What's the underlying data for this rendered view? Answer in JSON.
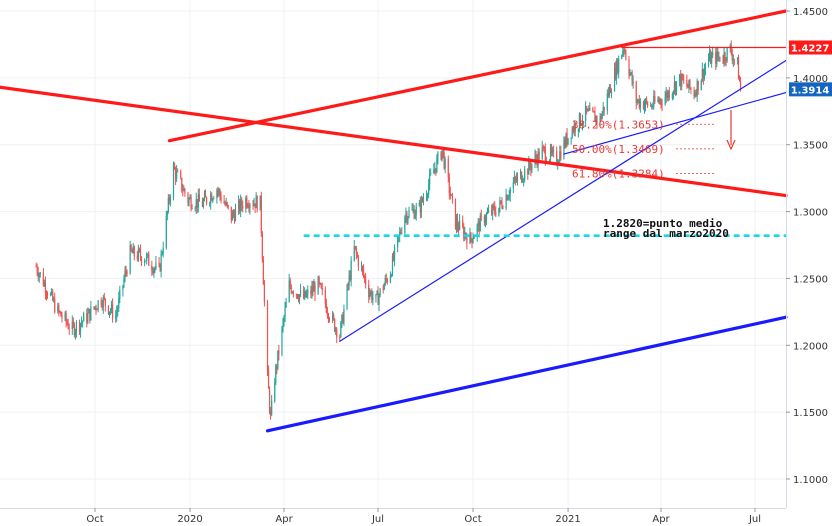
{
  "chart_data": {
    "type": "candlestick",
    "title": "",
    "xlabel": "",
    "ylabel": "",
    "x_ticks": [
      "Oct",
      "2020",
      "Apr",
      "Jul",
      "Oct",
      "2021",
      "Apr",
      "Jul"
    ],
    "y_ticks": [
      "1.4500",
      "1.4000",
      "1.3500",
      "1.3000",
      "1.2500",
      "1.2000",
      "1.1500",
      "1.1000"
    ],
    "ylim": [
      1.09,
      1.455
    ],
    "grid": true,
    "colors": {
      "up": "#26a69a",
      "down": "#ef5350",
      "trend_red": "#ff1a1a",
      "trend_blue": "#1a1aff",
      "fib": "#e53935",
      "range_mid": "#18d8e8"
    },
    "price_badges": [
      {
        "label": "1.4227",
        "value": 1.4227,
        "color": "#ff1a1a"
      },
      {
        "label": "1.3914",
        "value": 1.3914,
        "color": "#1565c0"
      }
    ],
    "fib_levels": [
      {
        "label": "38.20%(1.3653)",
        "value": 1.3653
      },
      {
        "label": "50.00%(1.3469)",
        "value": 1.3469
      },
      {
        "label": "61.80%(1.3284)",
        "value": 1.3284
      }
    ],
    "annotation": [
      "1.2820=punto medio",
      "range dal marzo2020"
    ],
    "range_mid_level": 1.282,
    "price_series": [
      [
        "2019-08-05",
        1.259
      ],
      [
        "2019-08-26",
        1.225
      ],
      [
        "2019-09-09",
        1.212
      ],
      [
        "2019-09-23",
        1.221
      ],
      [
        "2019-10-07",
        1.235
      ],
      [
        "2019-10-21",
        1.222
      ],
      [
        "2019-11-04",
        1.269
      ],
      [
        "2019-11-18",
        1.266
      ],
      [
        "2019-12-02",
        1.255
      ],
      [
        "2019-12-16",
        1.332
      ],
      [
        "2019-12-30",
        1.309
      ],
      [
        "2020-01-13",
        1.306
      ],
      [
        "2020-01-27",
        1.317
      ],
      [
        "2020-02-10",
        1.296
      ],
      [
        "2020-02-24",
        1.309
      ],
      [
        "2020-03-09",
        1.306
      ],
      [
        "2020-03-16",
        1.176
      ],
      [
        "2020-03-19",
        1.145
      ],
      [
        "2020-03-23",
        1.176
      ],
      [
        "2020-04-06",
        1.245
      ],
      [
        "2020-04-20",
        1.235
      ],
      [
        "2020-05-04",
        1.245
      ],
      [
        "2020-05-18",
        1.218
      ],
      [
        "2020-05-25",
        1.208
      ],
      [
        "2020-06-08",
        1.272
      ],
      [
        "2020-06-22",
        1.241
      ],
      [
        "2020-06-29",
        1.233
      ],
      [
        "2020-07-13",
        1.255
      ],
      [
        "2020-07-27",
        1.298
      ],
      [
        "2020-08-10",
        1.302
      ],
      [
        "2020-08-24",
        1.331
      ],
      [
        "2020-09-01",
        1.346
      ],
      [
        "2020-09-14",
        1.292
      ],
      [
        "2020-09-28",
        1.279
      ],
      [
        "2020-10-12",
        1.296
      ],
      [
        "2020-10-26",
        1.303
      ],
      [
        "2020-11-09",
        1.321
      ],
      [
        "2020-11-23",
        1.332
      ],
      [
        "2020-12-07",
        1.345
      ],
      [
        "2020-12-21",
        1.339
      ],
      [
        "2021-01-04",
        1.361
      ],
      [
        "2021-01-18",
        1.373
      ],
      [
        "2021-02-01",
        1.369
      ],
      [
        "2021-02-15",
        1.403
      ],
      [
        "2021-02-24",
        1.424
      ],
      [
        "2021-03-08",
        1.383
      ],
      [
        "2021-03-22",
        1.379
      ],
      [
        "2021-04-05",
        1.386
      ],
      [
        "2021-04-19",
        1.399
      ],
      [
        "2021-05-03",
        1.389
      ],
      [
        "2021-05-17",
        1.414
      ],
      [
        "2021-05-31",
        1.416
      ],
      [
        "2021-06-07",
        1.421
      ],
      [
        "2021-06-14",
        1.409
      ],
      [
        "2021-06-17",
        1.391
      ]
    ],
    "trendlines": [
      {
        "color": "trend_red",
        "from": [
          "2019-12-12",
          1.353
        ],
        "to": [
          "2021-07-31",
          1.45
        ]
      },
      {
        "color": "trend_red",
        "from": [
          "2019-07-01",
          1.393
        ],
        "to": [
          "2021-07-31",
          1.312
        ]
      },
      {
        "color": "trend_red",
        "from": [
          "2021-02-22",
          1.4227
        ],
        "to": [
          "2021-07-31",
          1.4227
        ]
      },
      {
        "color": "trend_blue",
        "from": [
          "2020-03-16",
          1.136
        ],
        "to": [
          "2021-07-31",
          1.221
        ]
      },
      {
        "color": "trend_blue",
        "from": [
          "2020-05-25",
          1.203
        ],
        "to": [
          "2021-07-31",
          1.413
        ]
      },
      {
        "color": "trend_blue",
        "from": [
          "2020-12-28",
          1.343
        ],
        "to": [
          "2021-07-31",
          1.389
        ]
      }
    ]
  }
}
